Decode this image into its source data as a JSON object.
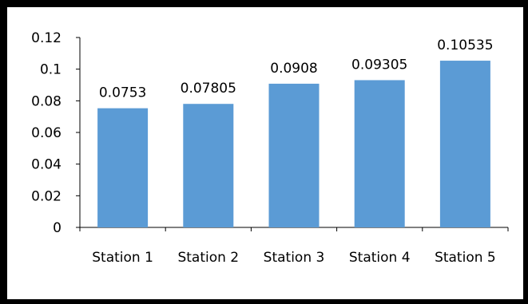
{
  "chart_data": {
    "type": "bar",
    "categories": [
      "Station 1",
      "Station 2",
      "Station 3",
      "Station 4",
      "Station 5"
    ],
    "values": [
      0.0753,
      0.07805,
      0.0908,
      0.09305,
      0.10535
    ],
    "data_labels": [
      "0.0753",
      "0.07805",
      "0.0908",
      "0.09305",
      "0.10535"
    ],
    "y_ticks": [
      "0",
      "0.02",
      "0.04",
      "0.06",
      "0.08",
      "0.1",
      "0.12"
    ],
    "ylim": [
      0,
      0.12
    ],
    "title": "",
    "xlabel": "",
    "ylabel": "",
    "grid": false,
    "legend": "none",
    "bar_color": "#5b9bd5",
    "frame_color": "#000000"
  }
}
